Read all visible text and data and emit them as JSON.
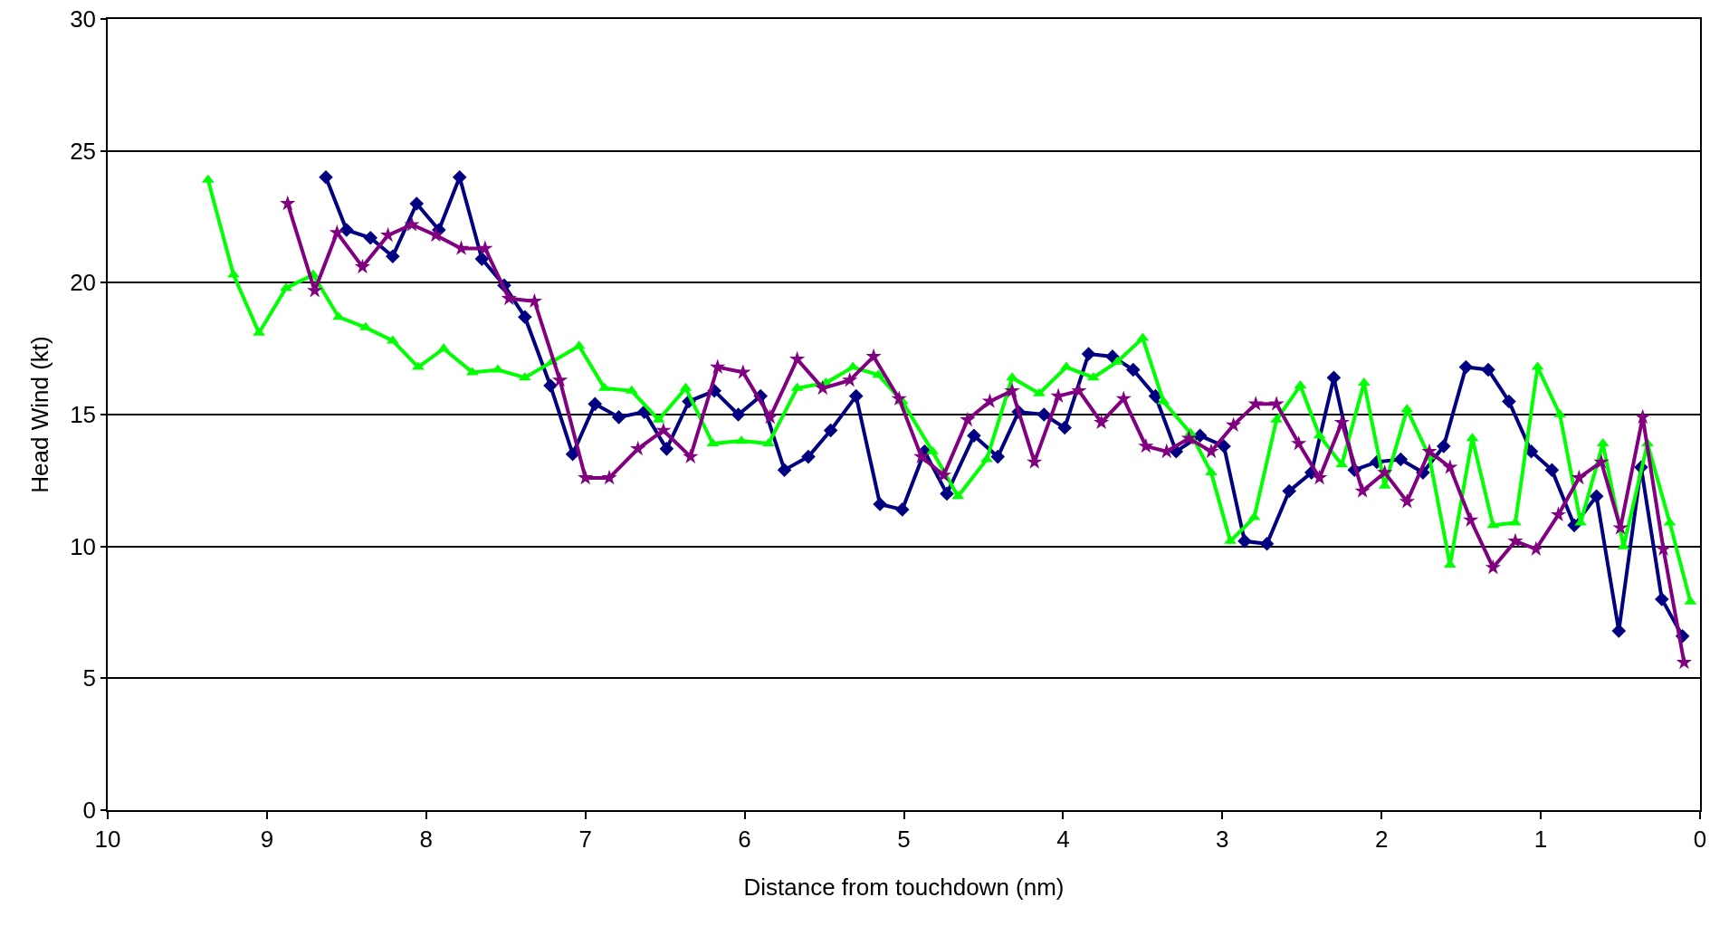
{
  "chart_data": {
    "type": "line",
    "xlabel": "Distance from touchdown (nm)",
    "ylabel": "Head Wind (kt)",
    "xlim": [
      10,
      0
    ],
    "xticks": [
      10,
      9,
      8,
      7,
      6,
      5,
      4,
      3,
      2,
      1,
      0
    ],
    "ylim": [
      0,
      30
    ],
    "yticks": [
      0,
      5,
      10,
      15,
      20,
      25,
      30
    ],
    "grid": "y",
    "line_style": "solid",
    "series": [
      {
        "color": "#000080",
        "marker": "diamond",
        "x": [
          8.63,
          8.5,
          8.35,
          8.21,
          8.06,
          7.92,
          7.79,
          7.65,
          7.51,
          7.38,
          7.22,
          7.08,
          6.94,
          6.79,
          6.63,
          6.49,
          6.35,
          6.19,
          6.04,
          5.9,
          5.75,
          5.6,
          5.46,
          5.3,
          5.15,
          5.01,
          4.87,
          4.73,
          4.56,
          4.41,
          4.28,
          4.12,
          3.99,
          3.84,
          3.69,
          3.56,
          3.42,
          3.29,
          3.14,
          2.99,
          2.86,
          2.72,
          2.58,
          2.44,
          2.3,
          2.17,
          2.03,
          1.88,
          1.74,
          1.61,
          1.47,
          1.33,
          1.2,
          1.06,
          0.93,
          0.79,
          0.65,
          0.51,
          0.37,
          0.24,
          0.11
        ],
        "values": [
          24.0,
          22.0,
          21.7,
          21.0,
          23.0,
          22.0,
          24.0,
          20.9,
          19.9,
          18.7,
          16.1,
          13.5,
          15.4,
          14.9,
          15.1,
          13.7,
          15.5,
          15.9,
          15.0,
          15.7,
          12.9,
          13.4,
          14.4,
          15.7,
          11.6,
          11.4,
          13.6,
          12.0,
          14.2,
          13.4,
          15.1,
          15.0,
          14.5,
          17.3,
          17.2,
          16.7,
          15.7,
          13.6,
          14.2,
          13.8,
          10.2,
          10.1,
          12.1,
          12.8,
          16.4,
          12.9,
          13.2,
          13.3,
          12.8,
          13.8,
          16.8,
          16.7,
          15.5,
          13.6,
          12.9,
          10.8,
          11.9,
          6.8,
          13.0,
          8.0,
          6.6
        ]
      },
      {
        "color": "#00ff00",
        "marker": "triangle",
        "x": [
          9.37,
          9.21,
          9.05,
          8.88,
          8.71,
          8.55,
          8.38,
          8.21,
          8.05,
          7.89,
          7.71,
          7.55,
          7.38,
          7.21,
          7.04,
          6.88,
          6.71,
          6.54,
          6.37,
          6.2,
          6.02,
          5.85,
          5.67,
          5.49,
          5.32,
          5.16,
          5.01,
          4.82,
          4.66,
          4.48,
          4.32,
          4.15,
          3.98,
          3.81,
          3.66,
          3.5,
          3.37,
          3.2,
          3.07,
          2.95,
          2.8,
          2.66,
          2.51,
          2.39,
          2.25,
          2.11,
          1.98,
          1.84,
          1.7,
          1.57,
          1.43,
          1.3,
          1.16,
          1.02,
          0.88,
          0.75,
          0.61,
          0.48,
          0.33,
          0.19,
          0.06
        ],
        "values": [
          23.9,
          20.3,
          18.1,
          19.8,
          20.3,
          18.7,
          18.3,
          17.8,
          16.8,
          17.5,
          16.6,
          16.7,
          16.4,
          17.0,
          17.6,
          16.0,
          15.9,
          14.8,
          16.0,
          13.9,
          14.0,
          13.9,
          16.0,
          16.2,
          16.8,
          16.5,
          15.5,
          13.6,
          11.9,
          13.3,
          16.4,
          15.8,
          16.8,
          16.4,
          17.0,
          17.9,
          15.5,
          14.3,
          12.8,
          10.2,
          11.1,
          14.8,
          16.1,
          14.2,
          13.1,
          16.2,
          12.3,
          15.2,
          13.4,
          9.3,
          14.1,
          10.8,
          10.9,
          16.8,
          15.0,
          10.9,
          13.9,
          10.0,
          13.9,
          10.9,
          7.9
        ]
      },
      {
        "color": "#800080",
        "marker": "star",
        "x": [
          8.87,
          8.7,
          8.56,
          8.4,
          8.24,
          8.09,
          7.94,
          7.78,
          7.63,
          7.48,
          7.32,
          7.16,
          7.0,
          6.85,
          6.67,
          6.51,
          6.34,
          6.17,
          6.01,
          5.84,
          5.67,
          5.51,
          5.34,
          5.19,
          5.03,
          4.89,
          4.75,
          4.6,
          4.46,
          4.32,
          4.18,
          4.03,
          3.9,
          3.76,
          3.62,
          3.48,
          3.35,
          3.21,
          3.07,
          2.93,
          2.79,
          2.66,
          2.52,
          2.39,
          2.25,
          2.12,
          1.98,
          1.84,
          1.7,
          1.57,
          1.44,
          1.3,
          1.16,
          1.03,
          0.89,
          0.76,
          0.62,
          0.5,
          0.36,
          0.23,
          0.1
        ],
        "values": [
          23.0,
          19.7,
          21.9,
          20.6,
          21.8,
          22.2,
          21.8,
          21.3,
          21.3,
          19.4,
          19.3,
          16.3,
          12.6,
          12.6,
          13.7,
          14.4,
          13.4,
          16.8,
          16.6,
          14.9,
          17.1,
          16.0,
          16.3,
          17.2,
          15.6,
          13.4,
          12.7,
          14.8,
          15.5,
          15.9,
          13.2,
          15.7,
          15.9,
          14.7,
          15.6,
          13.8,
          13.6,
          14.1,
          13.6,
          14.6,
          15.4,
          15.4,
          13.9,
          12.6,
          14.7,
          12.1,
          12.8,
          11.7,
          13.6,
          13.0,
          11.0,
          9.2,
          10.2,
          9.9,
          11.2,
          12.6,
          13.2,
          10.7,
          14.9,
          9.9,
          5.6
        ]
      }
    ]
  }
}
